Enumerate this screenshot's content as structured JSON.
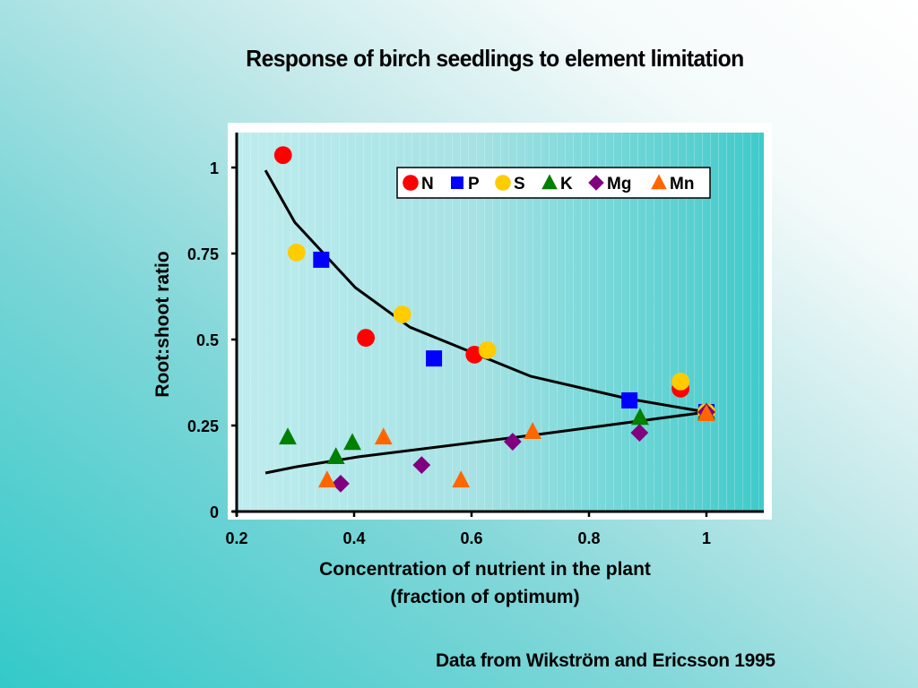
{
  "chart_data": {
    "type": "scatter",
    "title": "Response of birch seedlings to element limitation",
    "xlabel": "Concentration of nutrient in the plant",
    "xlabel_line2": "(fraction of optimum)",
    "ylabel": "Root:shoot ratio",
    "xlim": [
      0.2,
      1.1
    ],
    "ylim": [
      0,
      1.1
    ],
    "xticks": [
      0.2,
      0.4,
      0.6,
      0.8,
      1
    ],
    "xtick_labels": [
      "0.2",
      "0.4",
      "0.6",
      "0.8",
      "1"
    ],
    "yticks": [
      0,
      0.25,
      0.5,
      0.75,
      1
    ],
    "ytick_labels": [
      "0",
      "0.25",
      "0.5",
      "0.75",
      "1"
    ],
    "grid": false,
    "legend_position": "top-right",
    "series": [
      {
        "name": "N",
        "marker": "circle",
        "color": "#ff0000",
        "x": [
          0.279,
          0.42,
          0.605,
          0.956,
          1.0
        ],
        "y": [
          1.036,
          0.505,
          0.456,
          0.357,
          0.289
        ]
      },
      {
        "name": "P",
        "marker": "square",
        "color": "#0000ff",
        "x": [
          0.344,
          0.536,
          0.869,
          1.0
        ],
        "y": [
          0.732,
          0.445,
          0.323,
          0.289
        ]
      },
      {
        "name": "S",
        "marker": "circle",
        "color": "#ffcc00",
        "x": [
          0.302,
          0.482,
          0.627,
          0.956,
          1.0
        ],
        "y": [
          0.753,
          0.573,
          0.469,
          0.378,
          0.289
        ]
      },
      {
        "name": "K",
        "marker": "triangle",
        "color": "#008000",
        "x": [
          0.287,
          0.369,
          0.397,
          0.887,
          1.0
        ],
        "y": [
          0.216,
          0.159,
          0.2,
          0.273,
          0.289
        ]
      },
      {
        "name": "Mg",
        "marker": "diamond",
        "color": "#800080",
        "x": [
          0.377,
          0.515,
          0.67,
          0.886,
          1.0
        ],
        "y": [
          0.081,
          0.135,
          0.203,
          0.229,
          0.289
        ]
      },
      {
        "name": "Mn",
        "marker": "triangle",
        "color": "#ff6600",
        "x": [
          0.354,
          0.45,
          0.582,
          0.704,
          1.0
        ],
        "y": [
          0.091,
          0.216,
          0.091,
          0.232,
          0.284
        ]
      }
    ],
    "curves": [
      {
        "name": "macronutrient-trend",
        "color": "#000000",
        "x": [
          0.249,
          0.299,
          0.402,
          0.495,
          0.701,
          0.866,
          1.0
        ],
        "y": [
          0.992,
          0.841,
          0.651,
          0.536,
          0.393,
          0.328,
          0.289
        ]
      },
      {
        "name": "micronutrient-trend",
        "color": "#000000",
        "x": [
          0.249,
          0.301,
          0.408,
          0.713,
          1.0
        ],
        "y": [
          0.112,
          0.13,
          0.159,
          0.224,
          0.289
        ]
      }
    ],
    "source_note": "Data from Wikström and Ericsson 1995"
  }
}
